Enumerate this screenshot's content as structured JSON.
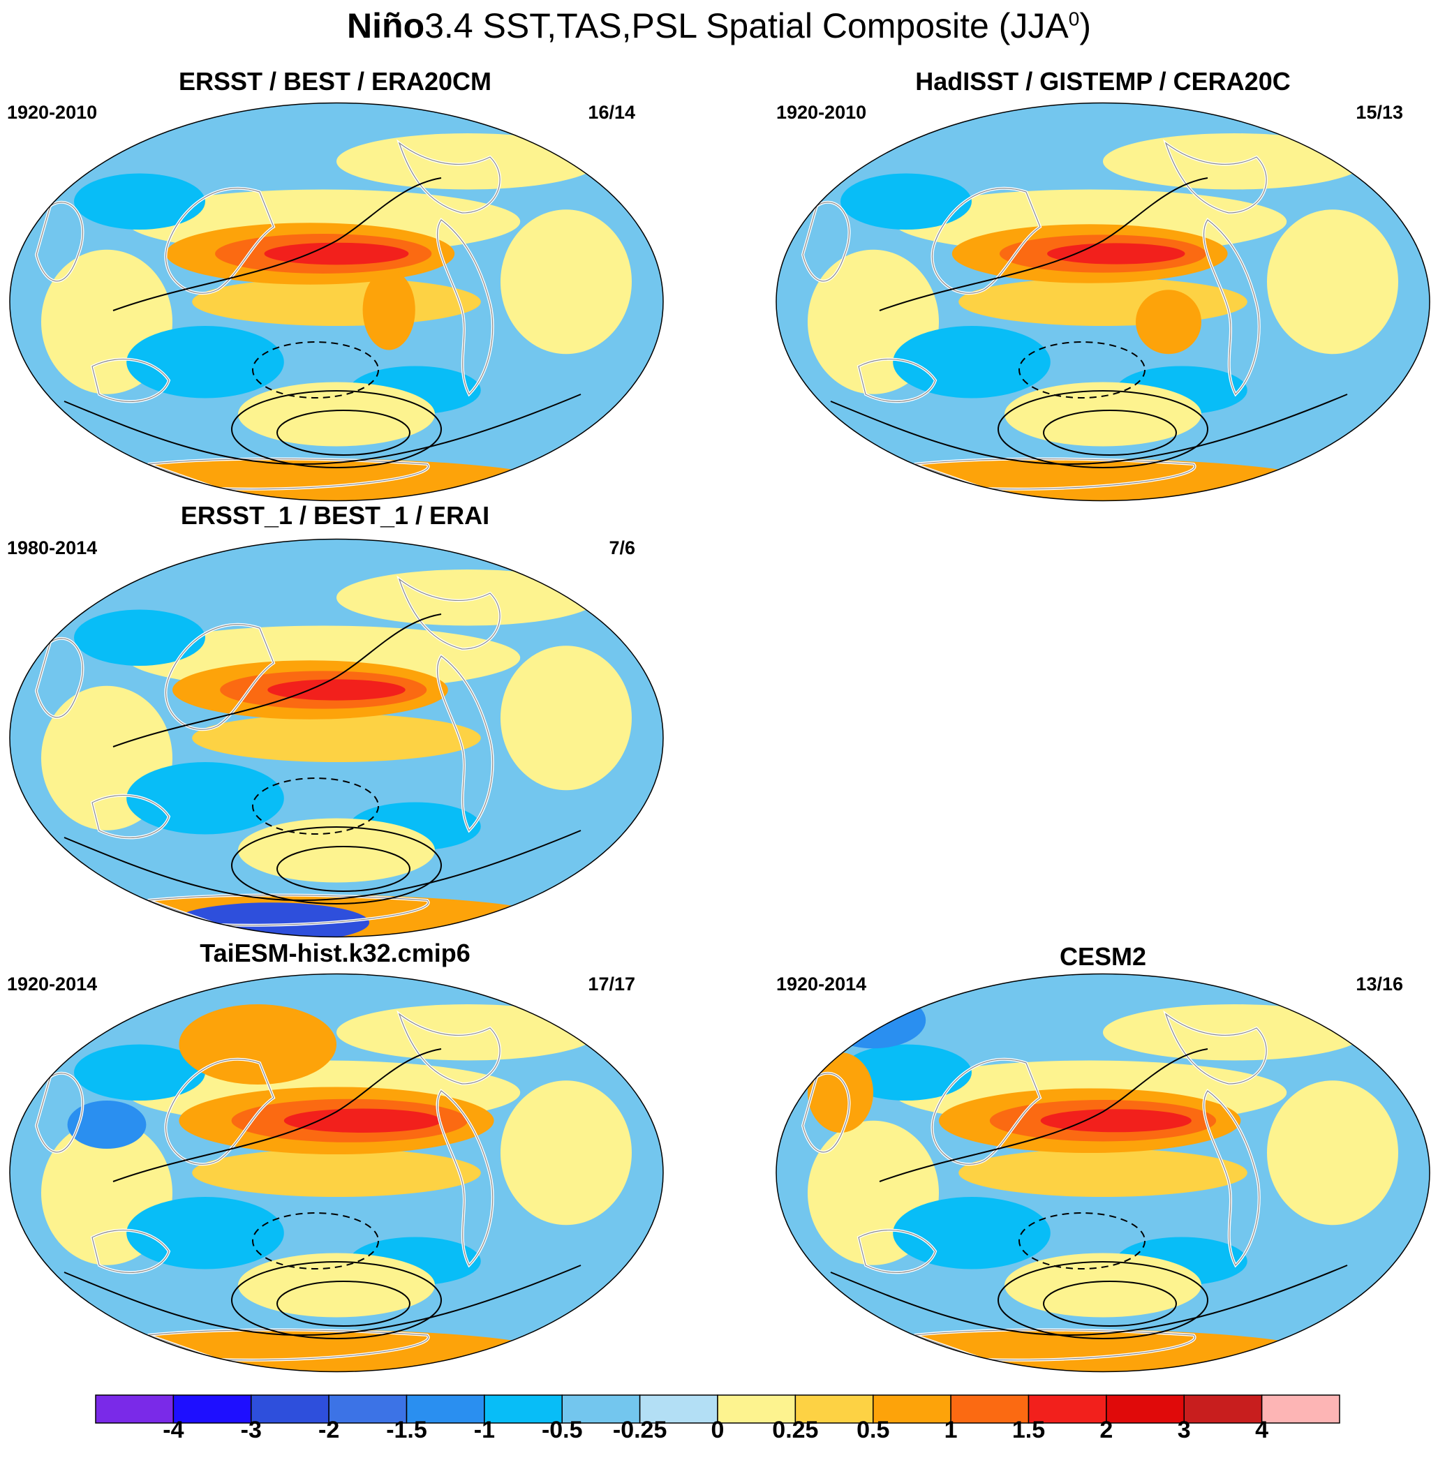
{
  "title_bold": "Niño",
  "title_rest": "3.4 SST,TAS,PSL Spatial Composite (JJA",
  "title_sup": "0",
  "title_end": ")",
  "panels": [
    {
      "title": "ERSST / BEST / ERA20CM",
      "period": "1920-2010",
      "count": "16/14"
    },
    {
      "title": "HadISST / GISTEMP / CERA20C",
      "period": "1920-2010",
      "count": "15/13"
    },
    {
      "title": "ERSST_1 / BEST_1 / ERAI",
      "period": "1980-2014",
      "count": "7/6"
    },
    {
      "title": "TaiESM-hist.k32.cmip6",
      "period": "1920-2014",
      "count": "17/17"
    },
    {
      "title": "CESM2",
      "period": "1920-2014",
      "count": "13/16"
    }
  ],
  "colorbar": {
    "labels": [
      "-4",
      "-3",
      "-2",
      "-1.5",
      "-1",
      "-0.5",
      "-0.25",
      "0",
      "0.25",
      "0.5",
      "1",
      "1.5",
      "2",
      "3",
      "4"
    ],
    "colors": [
      "#7a2ae8",
      "#1e0fff",
      "#2e4fdc",
      "#3c73e6",
      "#2a8ff0",
      "#08bdf7",
      "#73c6ee",
      "#b3dff5",
      "#fdf38f",
      "#fdd244",
      "#fda30a",
      "#fb6a12",
      "#f2201c",
      "#e00a0a",
      "#c81e1e",
      "#fdb5b5"
    ]
  }
}
